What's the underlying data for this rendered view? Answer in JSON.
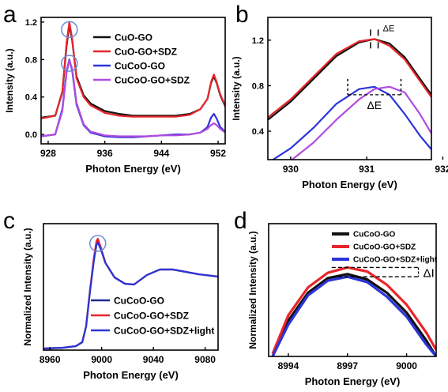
{
  "chart_data": [
    {
      "panel": "a",
      "type": "line",
      "xlabel": "Photon Energy (eV)",
      "ylabel": "Intensity (a.u.)",
      "xlim": [
        927,
        953
      ],
      "ylim": [
        -0.1,
        1.25
      ],
      "xticks": [
        928,
        936,
        944,
        952
      ],
      "yticks": [
        0.0,
        0.4,
        0.8,
        1.2
      ],
      "xtick_labels": [
        "928",
        "936",
        "944",
        "952"
      ],
      "ytick_labels": [
        "0.0",
        "0.4",
        "0.8",
        "1.2"
      ],
      "legend": "top-right",
      "annotations": [
        "peak circles at ~931 eV"
      ],
      "series": [
        {
          "name": "CuO-GO",
          "color": "#111111",
          "x": [
            927.0,
            929.0,
            930.0,
            930.6,
            931.0,
            931.4,
            932.0,
            933.0,
            934.0,
            936.0,
            938.0,
            940.0,
            942.0,
            944.0,
            946.0,
            948.0,
            949.5,
            950.5,
            951.0,
            951.4,
            951.8,
            952.3,
            953.0
          ],
          "y": [
            0.18,
            0.2,
            0.45,
            0.95,
            1.17,
            1.0,
            0.62,
            0.42,
            0.33,
            0.25,
            0.22,
            0.2,
            0.2,
            0.2,
            0.2,
            0.22,
            0.27,
            0.38,
            0.55,
            0.62,
            0.55,
            0.42,
            0.3
          ]
        },
        {
          "name": "CuO-GO+SDZ",
          "color": "#e8262b",
          "x": [
            927.0,
            929.0,
            930.0,
            930.6,
            931.0,
            931.4,
            932.0,
            933.0,
            934.0,
            936.0,
            938.0,
            940.0,
            942.0,
            944.0,
            946.0,
            948.0,
            949.5,
            950.5,
            951.0,
            951.4,
            951.8,
            952.3,
            953.0
          ],
          "y": [
            0.17,
            0.2,
            0.46,
            0.98,
            1.2,
            1.02,
            0.6,
            0.4,
            0.31,
            0.23,
            0.2,
            0.19,
            0.19,
            0.19,
            0.19,
            0.21,
            0.27,
            0.38,
            0.56,
            0.64,
            0.56,
            0.43,
            0.31
          ]
        },
        {
          "name": "CuCoO-GO",
          "color": "#2b35d8",
          "x": [
            927.0,
            929.0,
            930.0,
            930.6,
            931.0,
            931.4,
            932.0,
            933.0,
            934.0,
            936.0,
            938.0,
            940.0,
            942.0,
            944.0,
            946.0,
            948.0,
            949.5,
            950.5,
            951.0,
            951.4,
            951.8,
            952.3,
            953.0
          ],
          "y": [
            -0.02,
            0.0,
            0.27,
            0.68,
            0.8,
            0.68,
            0.32,
            0.1,
            0.02,
            -0.02,
            -0.03,
            -0.03,
            -0.02,
            -0.01,
            0.0,
            0.0,
            0.02,
            0.08,
            0.18,
            0.22,
            0.17,
            0.08,
            0.03
          ]
        },
        {
          "name": "CuCoO-GO+SDZ",
          "color": "#b04be0",
          "x": [
            927.0,
            929.0,
            930.0,
            930.6,
            931.0,
            931.4,
            932.0,
            933.0,
            934.0,
            936.0,
            938.0,
            940.0,
            942.0,
            944.0,
            946.0,
            948.0,
            949.5,
            950.5,
            951.0,
            951.4,
            951.8,
            952.3,
            953.0
          ],
          "y": [
            -0.02,
            0.0,
            0.25,
            0.66,
            0.79,
            0.7,
            0.34,
            0.11,
            0.03,
            -0.01,
            -0.02,
            -0.02,
            -0.02,
            -0.01,
            -0.01,
            0.0,
            0.02,
            0.06,
            0.1,
            0.12,
            0.1,
            0.06,
            0.02
          ]
        }
      ]
    },
    {
      "panel": "b",
      "type": "line",
      "xlabel": "Photon Energy (eV)",
      "ylabel": "Intensity (a.u.)",
      "xlim": [
        929.7,
        931.85
      ],
      "ylim": [
        0.15,
        1.4
      ],
      "xticks": [
        930,
        931,
        932
      ],
      "yticks": [
        0.4,
        0.8,
        1.2
      ],
      "xtick_labels": [
        "930",
        "931",
        "932"
      ],
      "ytick_labels": [
        "0.4",
        "0.8",
        "1.2"
      ],
      "annotations": [
        "ΔE",
        "ΔE"
      ],
      "series": [
        {
          "name": "CuO-GO",
          "color": "#111111",
          "x": [
            929.7,
            930.0,
            930.3,
            930.6,
            930.9,
            931.1,
            931.3,
            931.5,
            931.7,
            931.85
          ],
          "y": [
            0.5,
            0.66,
            0.86,
            1.06,
            1.18,
            1.21,
            1.17,
            1.05,
            0.86,
            0.72
          ]
        },
        {
          "name": "CuO-GO+SDZ",
          "color": "#e8262b",
          "x": [
            929.7,
            930.0,
            930.3,
            930.6,
            930.9,
            931.1,
            931.3,
            931.5,
            931.7,
            931.85
          ],
          "y": [
            0.52,
            0.68,
            0.88,
            1.08,
            1.19,
            1.21,
            1.15,
            1.03,
            0.84,
            0.7
          ]
        },
        {
          "name": "CuCoO-GO",
          "color": "#2b35d8",
          "x": [
            929.7,
            930.0,
            930.3,
            930.6,
            930.9,
            931.1,
            931.3,
            931.5,
            931.7,
            931.85
          ],
          "y": [
            0.12,
            0.25,
            0.43,
            0.64,
            0.77,
            0.79,
            0.72,
            0.55,
            0.36,
            0.24
          ]
        },
        {
          "name": "CuCoO-GO+SDZ",
          "color": "#b04be0",
          "x": [
            929.7,
            930.0,
            930.3,
            930.6,
            930.9,
            931.1,
            931.3,
            931.5,
            931.7,
            931.85
          ],
          "y": [
            0.05,
            0.14,
            0.3,
            0.5,
            0.68,
            0.77,
            0.79,
            0.74,
            0.55,
            0.38
          ]
        }
      ]
    },
    {
      "panel": "c",
      "type": "line",
      "xlabel": "Photon Energy (eV)",
      "ylabel": "Normalized Intensity (a.u.)",
      "xlim": [
        8955,
        9090
      ],
      "ylim": [
        0,
        1.6
      ],
      "xticks": [
        8960,
        9000,
        9040,
        9080
      ],
      "xtick_labels": [
        "8960",
        "9000",
        "9040",
        "9080"
      ],
      "yticks_shown": false,
      "legend": "bottom-center",
      "annotations": [
        "peak circle at ~8997 eV"
      ],
      "series": [
        {
          "name": "CuCoO-GO",
          "color": "#1d2a8f",
          "x": [
            8955,
            8970,
            8980,
            8985,
            8988,
            8991,
            8994,
            8996,
            8997,
            8999,
            9003,
            9010,
            9018,
            9025,
            9035,
            9045,
            9055,
            9065,
            9075,
            9085,
            9090
          ],
          "y": [
            0.02,
            0.03,
            0.05,
            0.1,
            0.3,
            0.75,
            1.15,
            1.35,
            1.38,
            1.3,
            1.1,
            0.92,
            0.84,
            0.83,
            0.95,
            1.02,
            1.02,
            0.99,
            0.96,
            0.94,
            0.93
          ]
        },
        {
          "name": "CuCoO-GO+SDZ",
          "color": "#e8262b",
          "x": [
            8955,
            8970,
            8980,
            8985,
            8988,
            8991,
            8994,
            8996,
            8997,
            8999,
            9003,
            9010,
            9018,
            9025,
            9035,
            9045,
            9055,
            9065,
            9075,
            9085,
            9090
          ],
          "y": [
            0.02,
            0.03,
            0.05,
            0.1,
            0.3,
            0.76,
            1.17,
            1.38,
            1.41,
            1.32,
            1.1,
            0.92,
            0.84,
            0.83,
            0.95,
            1.02,
            1.02,
            0.99,
            0.96,
            0.94,
            0.93
          ]
        },
        {
          "name": "CuCoO-GO+SDZ+light",
          "color": "#2b35d8",
          "x": [
            8955,
            8970,
            8980,
            8985,
            8988,
            8991,
            8994,
            8996,
            8997,
            8999,
            9003,
            9010,
            9018,
            9025,
            9035,
            9045,
            9055,
            9065,
            9075,
            9085,
            9090
          ],
          "y": [
            0.02,
            0.03,
            0.05,
            0.1,
            0.3,
            0.74,
            1.13,
            1.33,
            1.36,
            1.29,
            1.1,
            0.92,
            0.84,
            0.83,
            0.95,
            1.02,
            1.02,
            0.99,
            0.96,
            0.94,
            0.93
          ]
        }
      ]
    },
    {
      "panel": "d",
      "type": "line",
      "xlabel": "Photon Energy (eV)",
      "ylabel": "Normalized Intensity (a.u.)",
      "xlim": [
        8993,
        9001.5
      ],
      "ylim": [
        0,
        1.0
      ],
      "xticks": [
        8994,
        8997,
        9000
      ],
      "xtick_labels": [
        "8994",
        "8997",
        "9000"
      ],
      "yticks_shown": false,
      "legend": "top-right",
      "annotations": [
        "ΔI"
      ],
      "series": [
        {
          "name": "CuCoO-GO",
          "color": "#111111",
          "x": [
            8993.2,
            8994.0,
            8995.0,
            8996.0,
            8997.0,
            8998.0,
            8999.0,
            9000.0,
            9001.0,
            9001.5
          ],
          "y": [
            0.0,
            0.27,
            0.48,
            0.59,
            0.62,
            0.58,
            0.48,
            0.33,
            0.12,
            0.0
          ]
        },
        {
          "name": "CuCoO-GO+SDZ",
          "color": "#e8262b",
          "x": [
            8993.2,
            8994.0,
            8995.0,
            8996.0,
            8997.0,
            8998.0,
            8999.0,
            9000.0,
            9001.0,
            9001.5
          ],
          "y": [
            0.02,
            0.31,
            0.52,
            0.63,
            0.67,
            0.64,
            0.54,
            0.39,
            0.18,
            0.05
          ]
        },
        {
          "name": "CuCoO-GO+SDZ+light",
          "color": "#2b35d8",
          "x": [
            8993.2,
            8994.0,
            8995.0,
            8996.0,
            8997.0,
            8998.0,
            8999.0,
            9000.0,
            9001.0,
            9001.5
          ],
          "y": [
            0.0,
            0.24,
            0.46,
            0.57,
            0.6,
            0.56,
            0.45,
            0.3,
            0.09,
            0.0
          ]
        }
      ]
    }
  ]
}
